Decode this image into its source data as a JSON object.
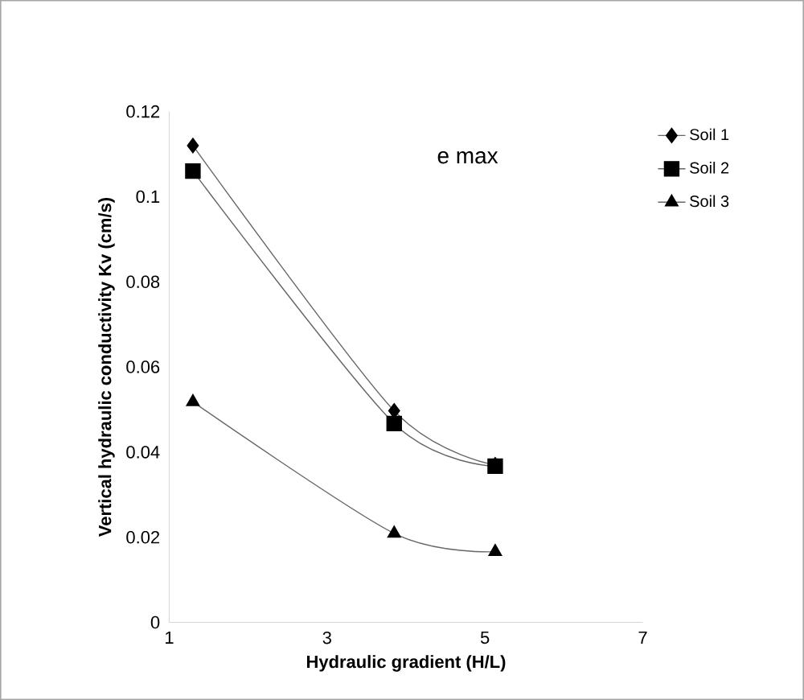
{
  "chart_data": {
    "type": "line",
    "xlabel": "Hydraulic gradient (H/L)",
    "ylabel": "Vertical hydraulic conductivity Kv (cm/s)",
    "annotations": [
      "e max"
    ],
    "xlim": [
      1,
      7
    ],
    "xticks": [
      1,
      3,
      5,
      7
    ],
    "ylim": [
      0,
      0.12
    ],
    "yticks": [
      0,
      0.02,
      0.04,
      0.06,
      0.08,
      0.1,
      0.12
    ],
    "grid": false,
    "legend": "right",
    "line_style": "solid",
    "series": [
      {
        "name": "Soil 1",
        "color": "#000000",
        "marker": "diamond",
        "x": [
          1.3,
          3.85,
          5.13
        ],
        "values": [
          0.112,
          0.0497,
          0.037
        ]
      },
      {
        "name": "Soil 2",
        "color": "#000000",
        "marker": "square",
        "x": [
          1.3,
          3.85,
          5.13
        ],
        "values": [
          0.106,
          0.0467,
          0.0367
        ]
      },
      {
        "name": "Soil 3",
        "color": "#000000",
        "marker": "triangle",
        "x": [
          1.3,
          3.85,
          5.13
        ],
        "values": [
          0.0518,
          0.0209,
          0.0166
        ]
      }
    ]
  }
}
